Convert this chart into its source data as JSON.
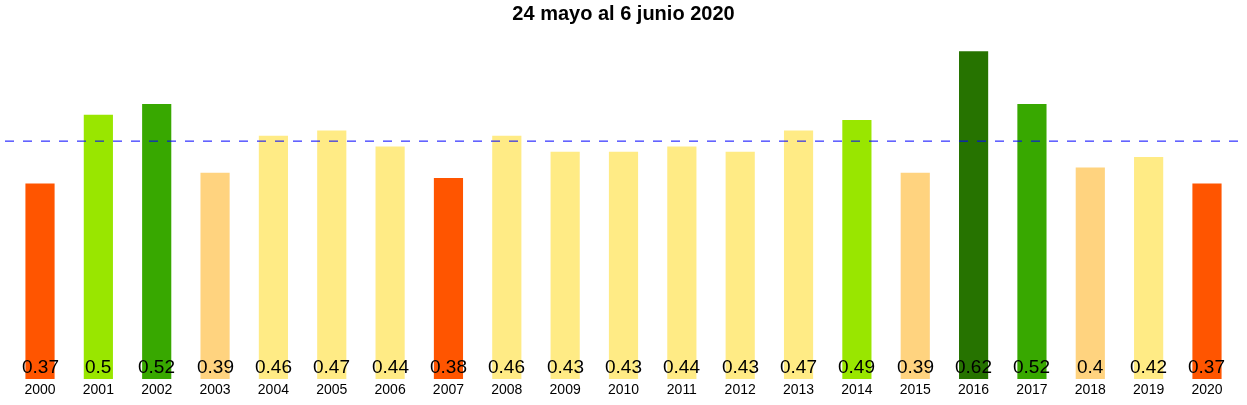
{
  "chart_data": {
    "type": "bar",
    "title": "24 mayo al 6 junio 2020",
    "categories": [
      "2000",
      "2001",
      "2002",
      "2003",
      "2004",
      "2005",
      "2006",
      "2007",
      "2008",
      "2009",
      "2010",
      "2011",
      "2012",
      "2013",
      "2014",
      "2015",
      "2016",
      "2017",
      "2018",
      "2019",
      "2020"
    ],
    "values": [
      0.37,
      0.5,
      0.52,
      0.39,
      0.46,
      0.47,
      0.44,
      0.38,
      0.46,
      0.43,
      0.43,
      0.44,
      0.43,
      0.47,
      0.49,
      0.39,
      0.62,
      0.52,
      0.4,
      0.42,
      0.37
    ],
    "colors": [
      "#ff5500",
      "#99e600",
      "#38a800",
      "#ffd37f",
      "#ffeb85",
      "#ffeb85",
      "#ffeb85",
      "#ff5500",
      "#ffeb85",
      "#ffeb85",
      "#ffeb85",
      "#ffeb85",
      "#ffeb85",
      "#ffeb85",
      "#99e600",
      "#ffd37f",
      "#267300",
      "#38a800",
      "#ffd37f",
      "#ffeb85",
      "#ff5500"
    ],
    "data_labels": true,
    "ref_lines": [
      {
        "axis": "y",
        "value": 0.45,
        "color": "#0000ff",
        "line_style": "dashed"
      }
    ]
  }
}
